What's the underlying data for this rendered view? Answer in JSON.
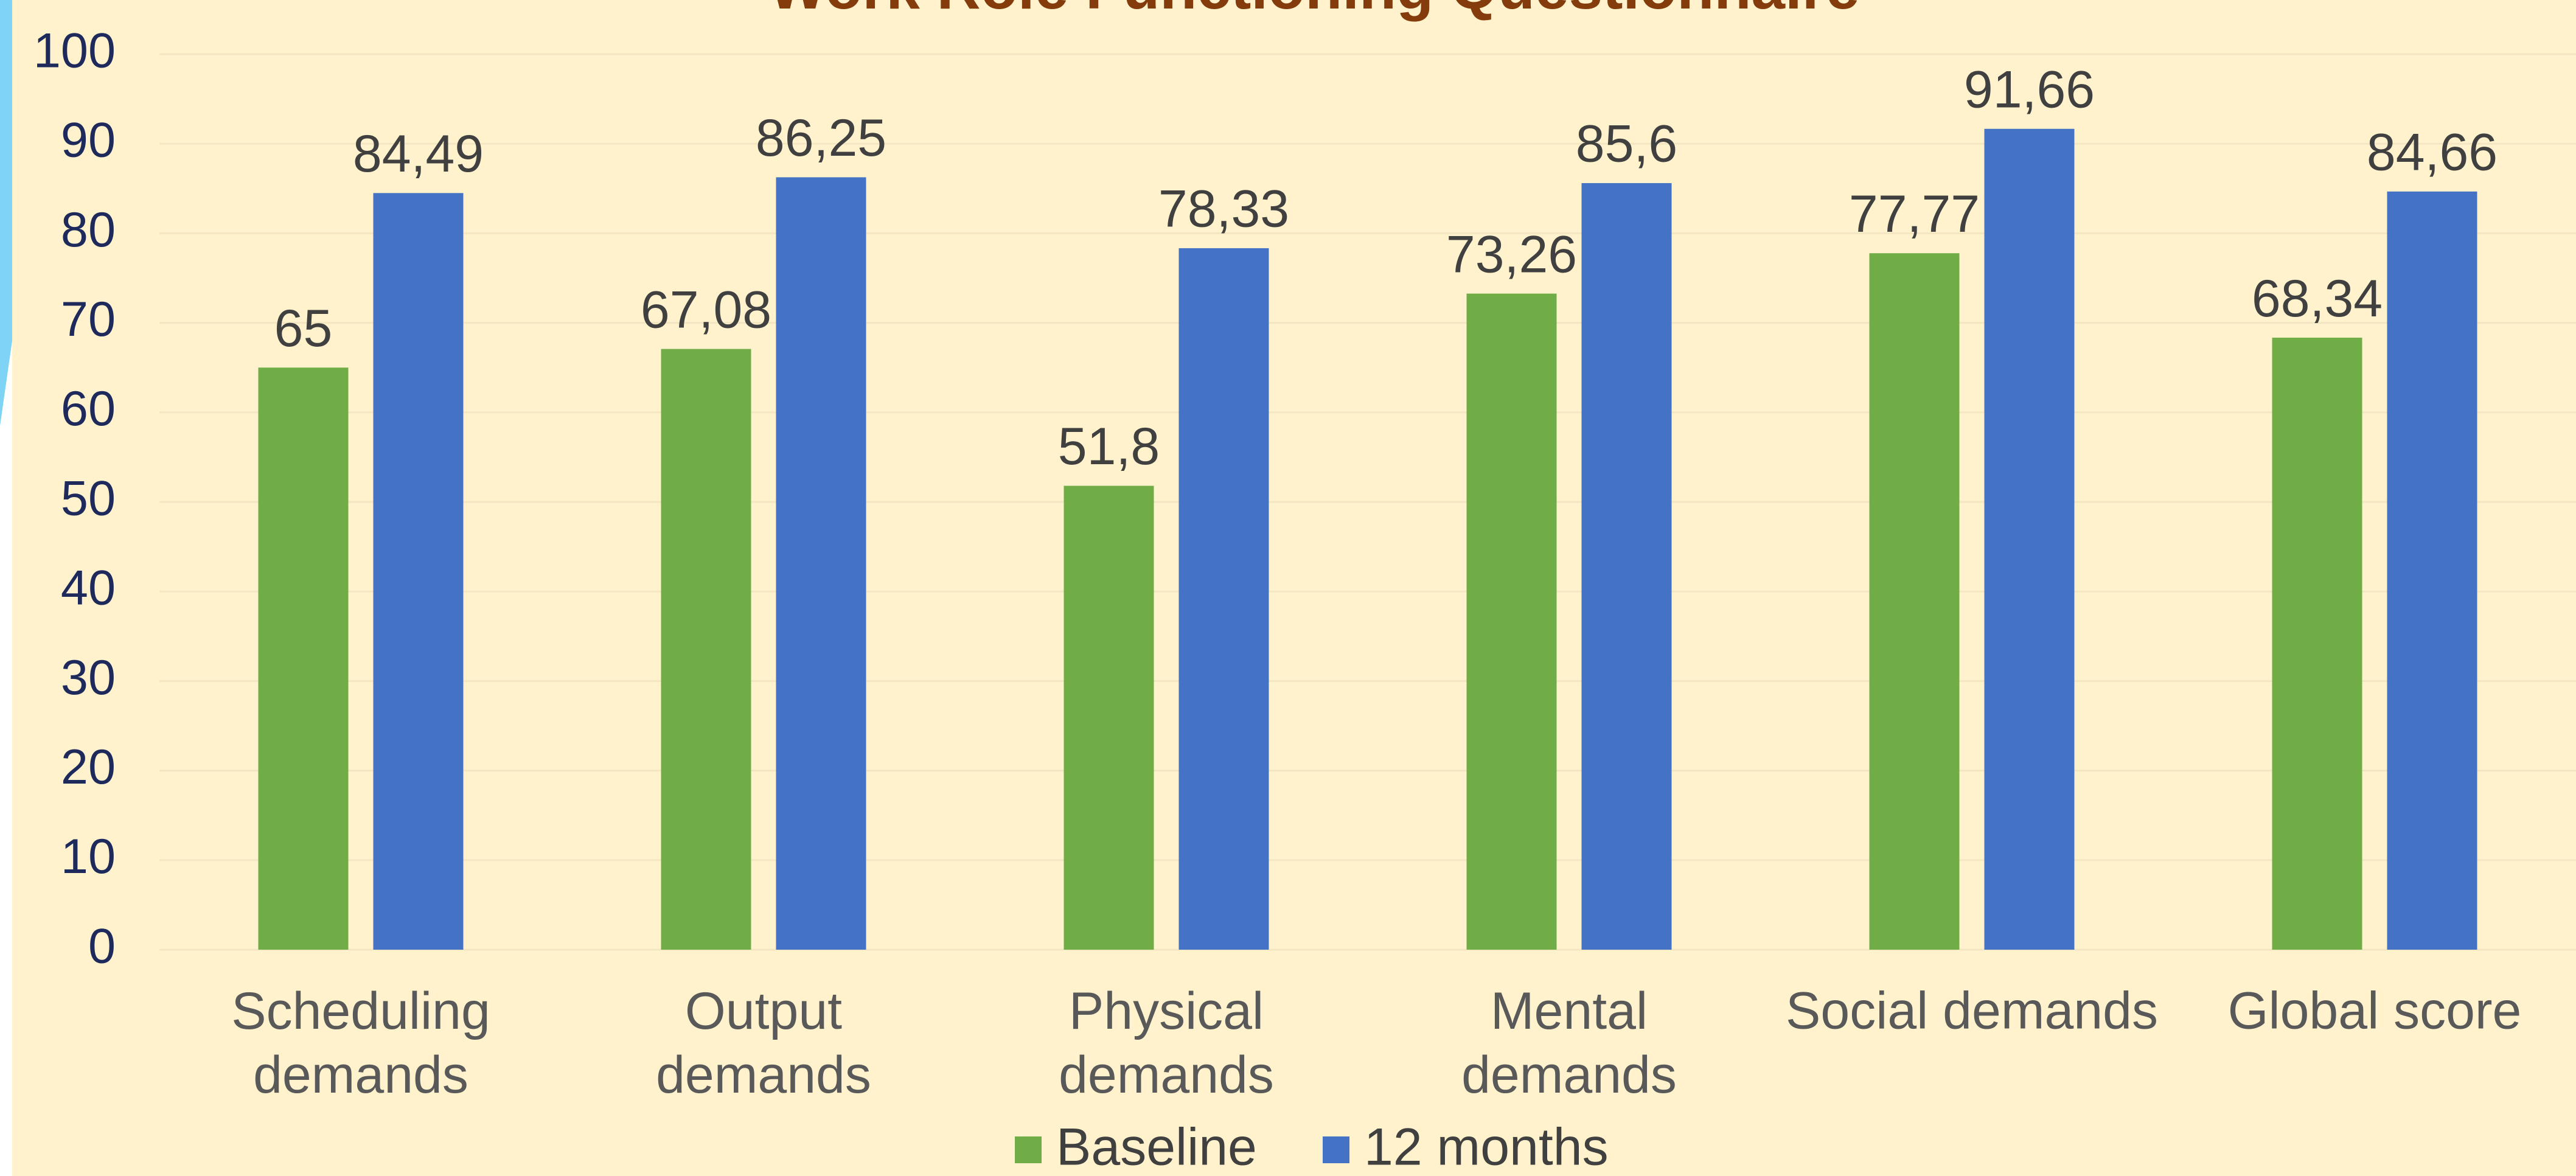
{
  "chart_data": {
    "type": "bar",
    "title": "Work Role Functioning Questionnaire",
    "categories": [
      "Scheduling\ndemands",
      "Output\ndemands",
      "Physical\ndemands",
      "Mental\ndemands",
      "Social demands",
      "Global score"
    ],
    "series": [
      {
        "name": "Baseline",
        "color": "#70ad47",
        "values": [
          65,
          67.08,
          51.8,
          73.26,
          77.77,
          68.34
        ],
        "value_labels": [
          "65",
          "67,08",
          "51,8",
          "73,26",
          "77,77",
          "68,34"
        ]
      },
      {
        "name": "12 months",
        "color": "#4472c4",
        "values": [
          84.49,
          86.25,
          78.33,
          85.6,
          91.66,
          84.66
        ],
        "value_labels": [
          "84,49",
          "86,25",
          "78,33",
          "85,6",
          "91,66",
          "84,66"
        ]
      }
    ],
    "ylim": [
      0,
      100
    ],
    "yticks": [
      0,
      10,
      20,
      30,
      40,
      50,
      60,
      70,
      80,
      90,
      100
    ],
    "grid": true,
    "legend": "bottom"
  }
}
